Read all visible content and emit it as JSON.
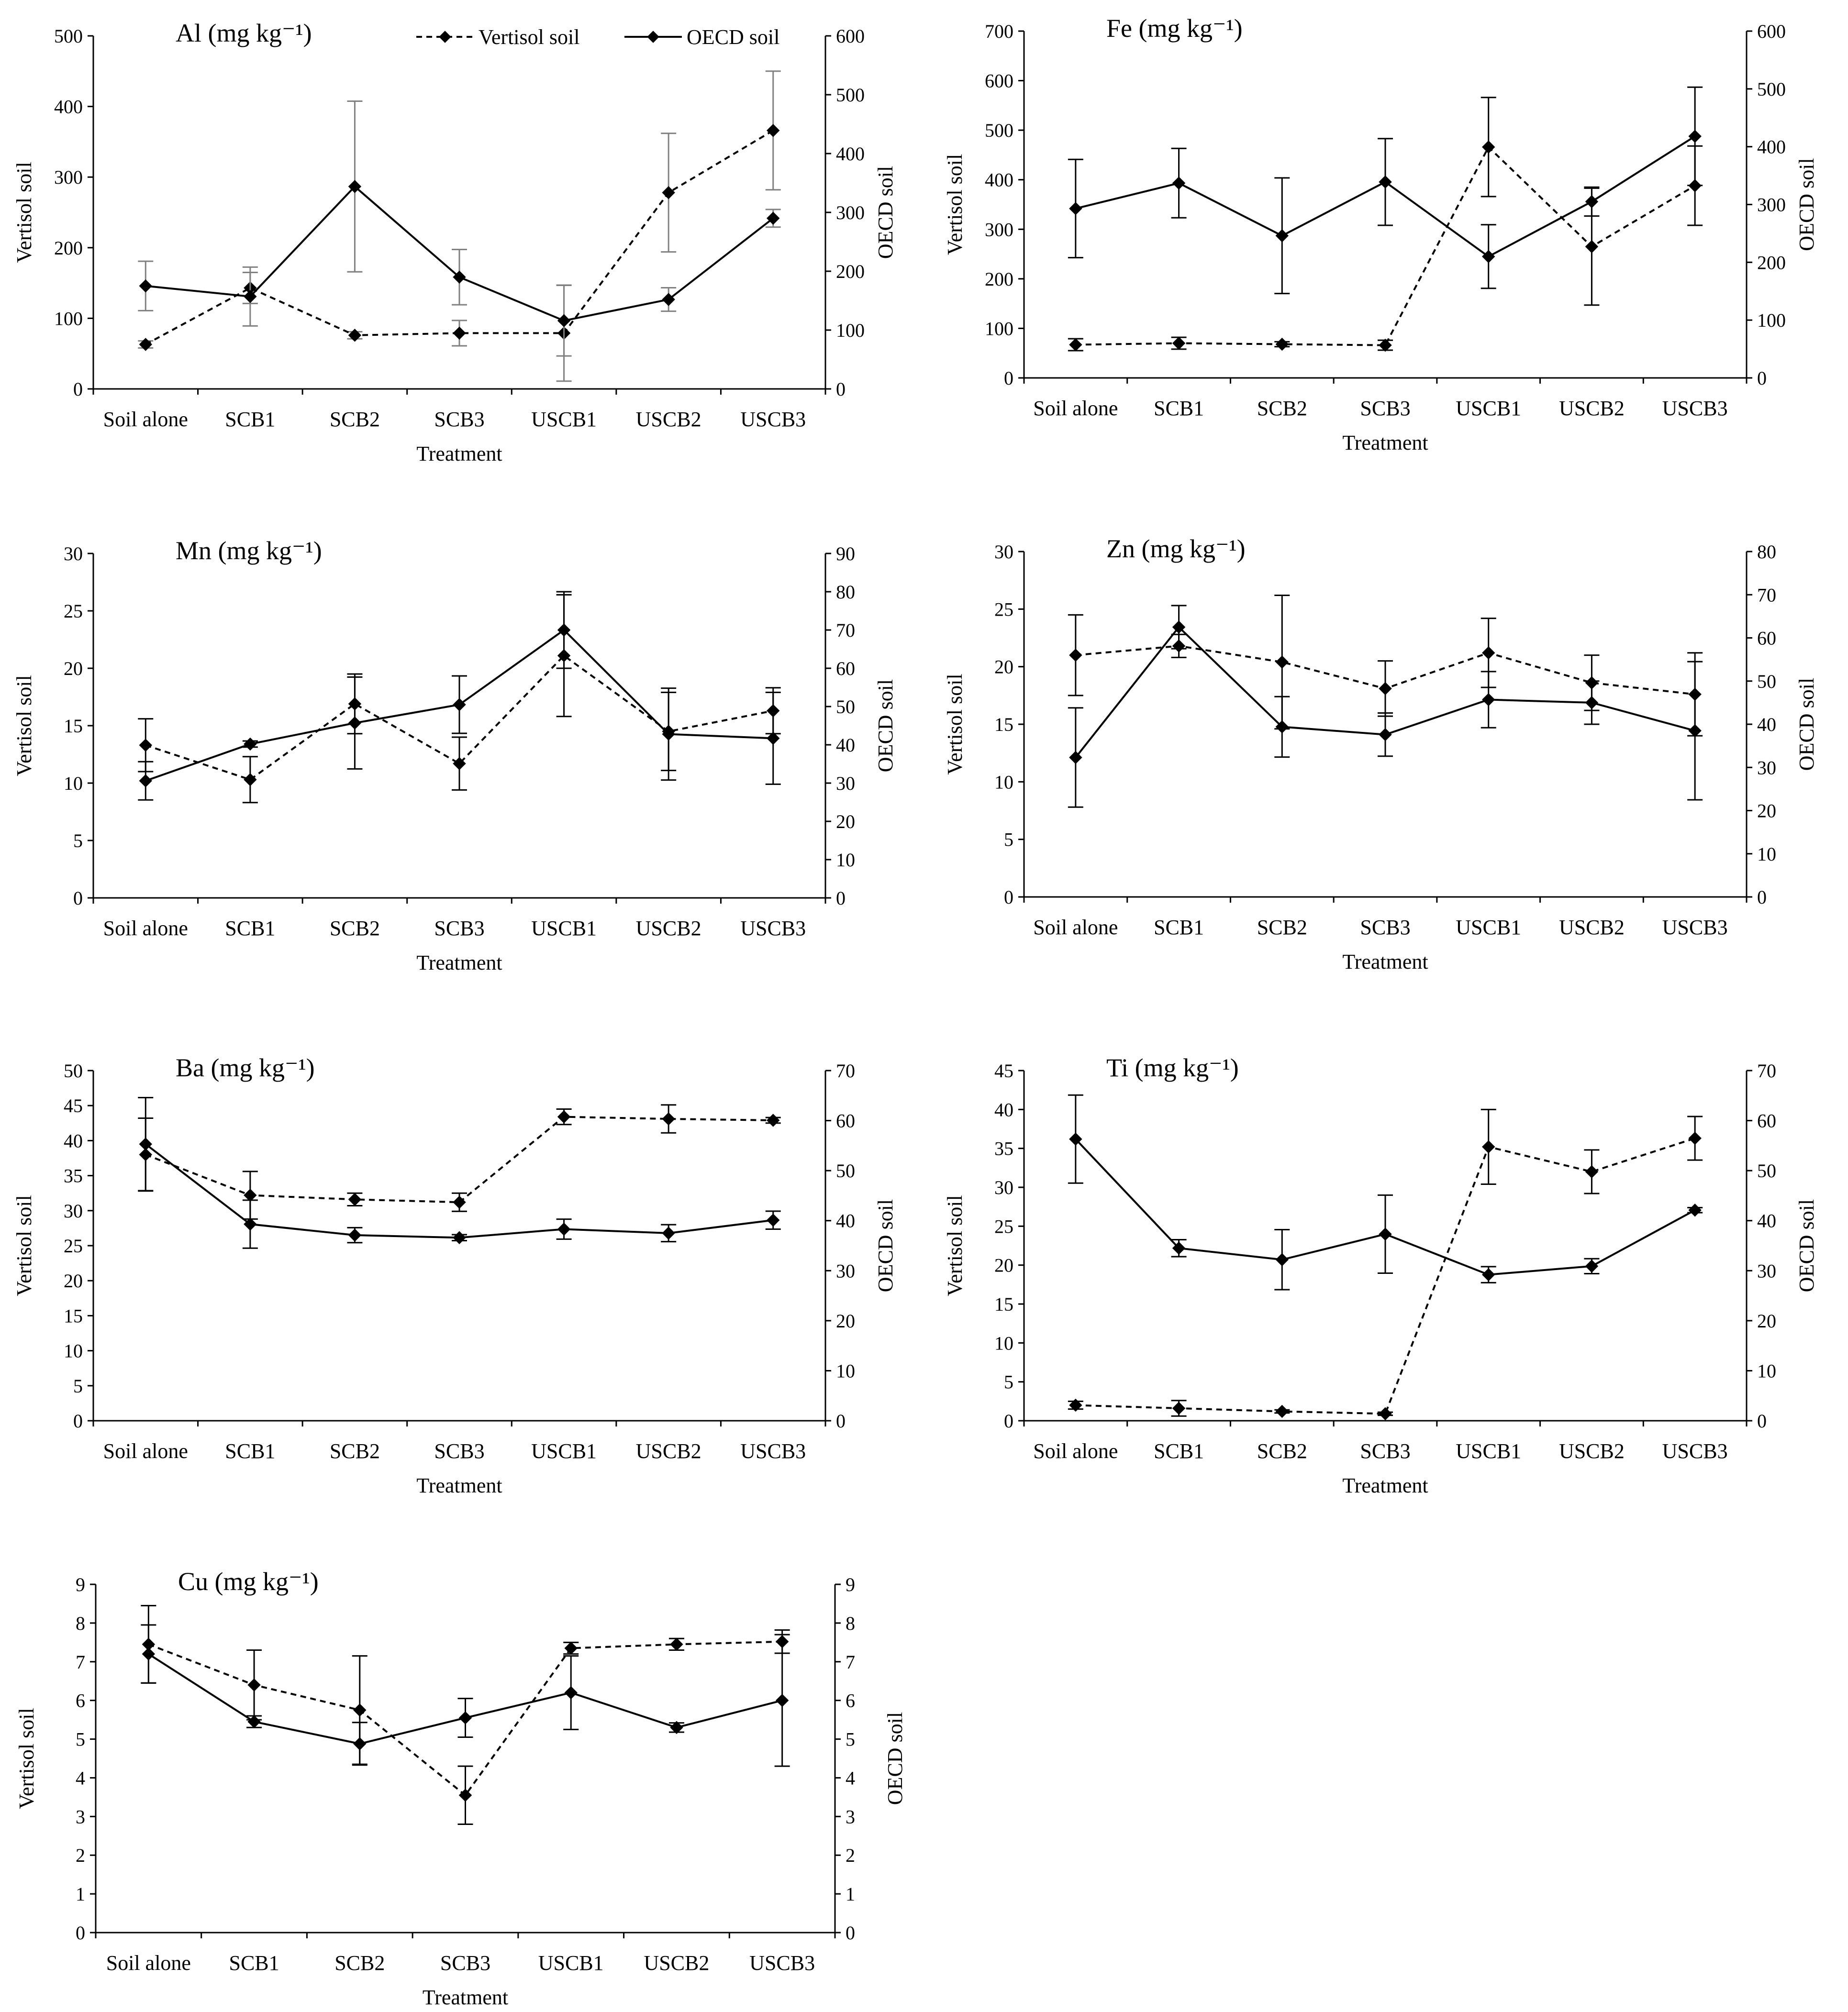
{
  "figure": {
    "legend": {
      "vertisol_label": "Vertisol soil",
      "oecd_label": "OECD soil"
    },
    "colors": {
      "line": "#000000",
      "axis": "#000000",
      "errorbar_al": "#808080"
    }
  },
  "chart_data": [
    {
      "type": "line",
      "title": "Al (mg kg⁻¹)",
      "xlabel": "Treatment",
      "ylabel_left": "Vertisol soil",
      "ylabel_right": "OECD soil",
      "categories": [
        "Soil alone",
        "SCB1",
        "SCB2",
        "SCB3",
        "USCB1",
        "USCB2",
        "USCB3"
      ],
      "left_ticks": [
        0,
        100,
        200,
        300,
        400,
        500
      ],
      "right_ticks": [
        0,
        100,
        200,
        300,
        400,
        500,
        600
      ],
      "ylim_left": [
        0,
        500
      ],
      "ylim_right": [
        0,
        600
      ],
      "legend_position": "top",
      "series": [
        {
          "name": "Vertisol soil",
          "axis": "left",
          "style": "dashed",
          "values": [
            63,
            143,
            76,
            79,
            79,
            278,
            366
          ],
          "errors": [
            5,
            22,
            5,
            18,
            68,
            84,
            84
          ]
        },
        {
          "name": "OECD soil",
          "axis": "right",
          "style": "solid",
          "values": [
            175,
            157,
            344,
            190,
            116,
            152,
            290
          ],
          "errors": [
            42,
            50,
            145,
            47,
            60,
            20,
            15
          ]
        }
      ]
    },
    {
      "type": "line",
      "title": "Fe (mg kg⁻¹)",
      "xlabel": "Treatment",
      "ylabel_left": "Vertisol soil",
      "ylabel_right": "OECD soil",
      "categories": [
        "Soil alone",
        "SCB1",
        "SCB2",
        "SCB3",
        "USCB1",
        "USCB2",
        "USCB3"
      ],
      "left_ticks": [
        0,
        100,
        200,
        300,
        400,
        500,
        600,
        700
      ],
      "right_ticks": [
        0,
        100,
        200,
        300,
        400,
        500,
        600
      ],
      "ylim_left": [
        0,
        700
      ],
      "ylim_right": [
        0,
        600
      ],
      "legend_position": "none",
      "series": [
        {
          "name": "Vertisol soil",
          "axis": "left",
          "style": "dashed",
          "values": [
            67,
            70,
            68,
            66,
            466,
            265,
            388
          ],
          "errors": [
            12,
            12,
            5,
            10,
            100,
            118,
            80
          ]
        },
        {
          "name": "OECD soil",
          "axis": "right",
          "style": "solid",
          "values": [
            293,
            337,
            246,
            339,
            210,
            305,
            418
          ],
          "errors": [
            85,
            60,
            100,
            75,
            55,
            25,
            85
          ]
        }
      ]
    },
    {
      "type": "line",
      "title": "Mn (mg kg⁻¹)",
      "xlabel": "Treatment",
      "ylabel_left": "Vertisol soil",
      "ylabel_right": "OECD soil",
      "categories": [
        "Soil alone",
        "SCB1",
        "SCB2",
        "SCB3",
        "USCB1",
        "USCB2",
        "USCB3"
      ],
      "left_ticks": [
        0,
        5,
        10,
        15,
        20,
        25,
        30
      ],
      "right_ticks": [
        0,
        10,
        20,
        30,
        40,
        50,
        60,
        70,
        80,
        90
      ],
      "ylim_left": [
        0,
        30
      ],
      "ylim_right": [
        0,
        90
      ],
      "legend_position": "none",
      "series": [
        {
          "name": "Vertisol soil",
          "axis": "left",
          "style": "dashed",
          "values": [
            13.3,
            10.3,
            16.9,
            11.7,
            21.1,
            14.5,
            16.3
          ],
          "errors": [
            2.3,
            2.0,
            2.6,
            2.3,
            5.3,
            3.4,
            2.0
          ]
        },
        {
          "name": "OECD soil",
          "axis": "right",
          "style": "solid",
          "values": [
            30.6,
            40.2,
            45.7,
            50.5,
            70.0,
            42.8,
            41.7
          ],
          "errors": [
            5.0,
            0.8,
            12.0,
            7.5,
            10.0,
            12.0,
            12.0
          ]
        }
      ]
    },
    {
      "type": "line",
      "title": "Zn (mg kg⁻¹)",
      "xlabel": "Treatment",
      "ylabel_left": "Vertisol soil",
      "ylabel_right": "OECD soil",
      "categories": [
        "Soil alone",
        "SCB1",
        "SCB2",
        "SCB3",
        "USCB1",
        "USCB2",
        "USCB3"
      ],
      "left_ticks": [
        0,
        5,
        10,
        15,
        20,
        25,
        30
      ],
      "right_ticks": [
        0,
        10,
        20,
        30,
        40,
        50,
        60,
        70,
        80
      ],
      "ylim_left": [
        0,
        30
      ],
      "ylim_right": [
        0,
        80
      ],
      "legend_position": "none",
      "series": [
        {
          "name": "Vertisol soil",
          "axis": "left",
          "style": "dashed",
          "values": [
            21.0,
            21.8,
            20.4,
            18.1,
            21.2,
            18.6,
            17.6
          ],
          "errors": [
            3.5,
            1.0,
            5.8,
            2.4,
            3.0,
            2.4,
            3.6
          ]
        },
        {
          "name": "OECD soil",
          "axis": "right",
          "style": "solid",
          "values": [
            32.3,
            62.5,
            39.4,
            37.6,
            45.7,
            45.0,
            38.5
          ],
          "errors": [
            11.5,
            5.0,
            7.0,
            5.0,
            6.5,
            5.0,
            16.0
          ]
        }
      ]
    },
    {
      "type": "line",
      "title": "Ba (mg kg⁻¹)",
      "xlabel": "Treatment",
      "ylabel_left": "Vertisol soil",
      "ylabel_right": "OECD soil",
      "categories": [
        "Soil alone",
        "SCB1",
        "SCB2",
        "SCB3",
        "USCB1",
        "USCB2",
        "USCB3"
      ],
      "left_ticks": [
        0,
        5,
        10,
        15,
        20,
        25,
        30,
        35,
        40,
        45,
        50
      ],
      "right_ticks": [
        0,
        10,
        20,
        30,
        40,
        50,
        60,
        70
      ],
      "ylim_left": [
        0,
        50
      ],
      "ylim_right": [
        0,
        70
      ],
      "legend_position": "none",
      "series": [
        {
          "name": "Vertisol soil",
          "axis": "left",
          "style": "dashed",
          "values": [
            38.0,
            32.2,
            31.6,
            31.2,
            43.4,
            43.1,
            42.9
          ],
          "errors": [
            5.2,
            3.4,
            0.9,
            1.3,
            1.1,
            2.0,
            0.4
          ]
        },
        {
          "name": "OECD soil",
          "axis": "right",
          "style": "solid",
          "values": [
            55.3,
            39.3,
            37.1,
            36.6,
            38.3,
            37.5,
            40.1
          ],
          "errors": [
            9.3,
            4.8,
            1.5,
            0.6,
            2.0,
            1.7,
            1.8
          ]
        }
      ]
    },
    {
      "type": "line",
      "title": "Ti (mg kg⁻¹)",
      "xlabel": "Treatment",
      "ylabel_left": "Vertisol soil",
      "ylabel_right": "OECD soil",
      "categories": [
        "Soil alone",
        "SCB1",
        "SCB2",
        "SCB3",
        "USCB1",
        "USCB2",
        "USCB3"
      ],
      "left_ticks": [
        0,
        5,
        10,
        15,
        20,
        25,
        30,
        35,
        40,
        45
      ],
      "right_ticks": [
        0,
        10,
        20,
        30,
        40,
        50,
        60,
        70
      ],
      "ylim_left": [
        0,
        45
      ],
      "ylim_right": [
        0,
        70
      ],
      "legend_position": "none",
      "series": [
        {
          "name": "Vertisol soil",
          "axis": "left",
          "style": "dashed",
          "values": [
            2.0,
            1.6,
            1.2,
            0.9,
            35.2,
            32.0,
            36.3
          ],
          "errors": [
            0.5,
            1.0,
            0.2,
            0.2,
            4.8,
            2.8,
            2.8
          ]
        },
        {
          "name": "OECD soil",
          "axis": "right",
          "style": "solid",
          "values": [
            56.3,
            34.5,
            32.2,
            37.3,
            29.2,
            30.9,
            42.1
          ],
          "errors": [
            8.8,
            1.7,
            6.0,
            7.8,
            1.6,
            1.5,
            0.5
          ]
        }
      ]
    },
    {
      "type": "line",
      "title": "Cu (mg kg⁻¹)",
      "xlabel": "Treatment",
      "ylabel_left": "Vertisol soil",
      "ylabel_right": "OECD soil",
      "categories": [
        "Soil alone",
        "SCB1",
        "SCB2",
        "SCB3",
        "USCB1",
        "USCB2",
        "USCB3"
      ],
      "left_ticks": [
        0,
        1,
        2,
        3,
        4,
        5,
        6,
        7,
        8,
        9
      ],
      "right_ticks": [
        0,
        1,
        2,
        3,
        4,
        5,
        6,
        7,
        8,
        9
      ],
      "ylim_left": [
        0,
        9
      ],
      "ylim_right": [
        0,
        9
      ],
      "legend_position": "none",
      "series": [
        {
          "name": "Vertisol soil",
          "axis": "left",
          "style": "dashed",
          "values": [
            7.45,
            6.4,
            5.75,
            3.55,
            7.35,
            7.45,
            7.52
          ],
          "errors": [
            1.0,
            0.9,
            1.4,
            0.75,
            0.15,
            0.15,
            0.3
          ]
        },
        {
          "name": "OECD soil",
          "axis": "right",
          "style": "solid",
          "values": [
            7.2,
            5.45,
            4.88,
            5.55,
            6.2,
            5.3,
            6.0
          ],
          "errors": [
            0.75,
            0.15,
            0.55,
            0.5,
            0.95,
            0.12,
            1.7
          ]
        }
      ]
    }
  ]
}
